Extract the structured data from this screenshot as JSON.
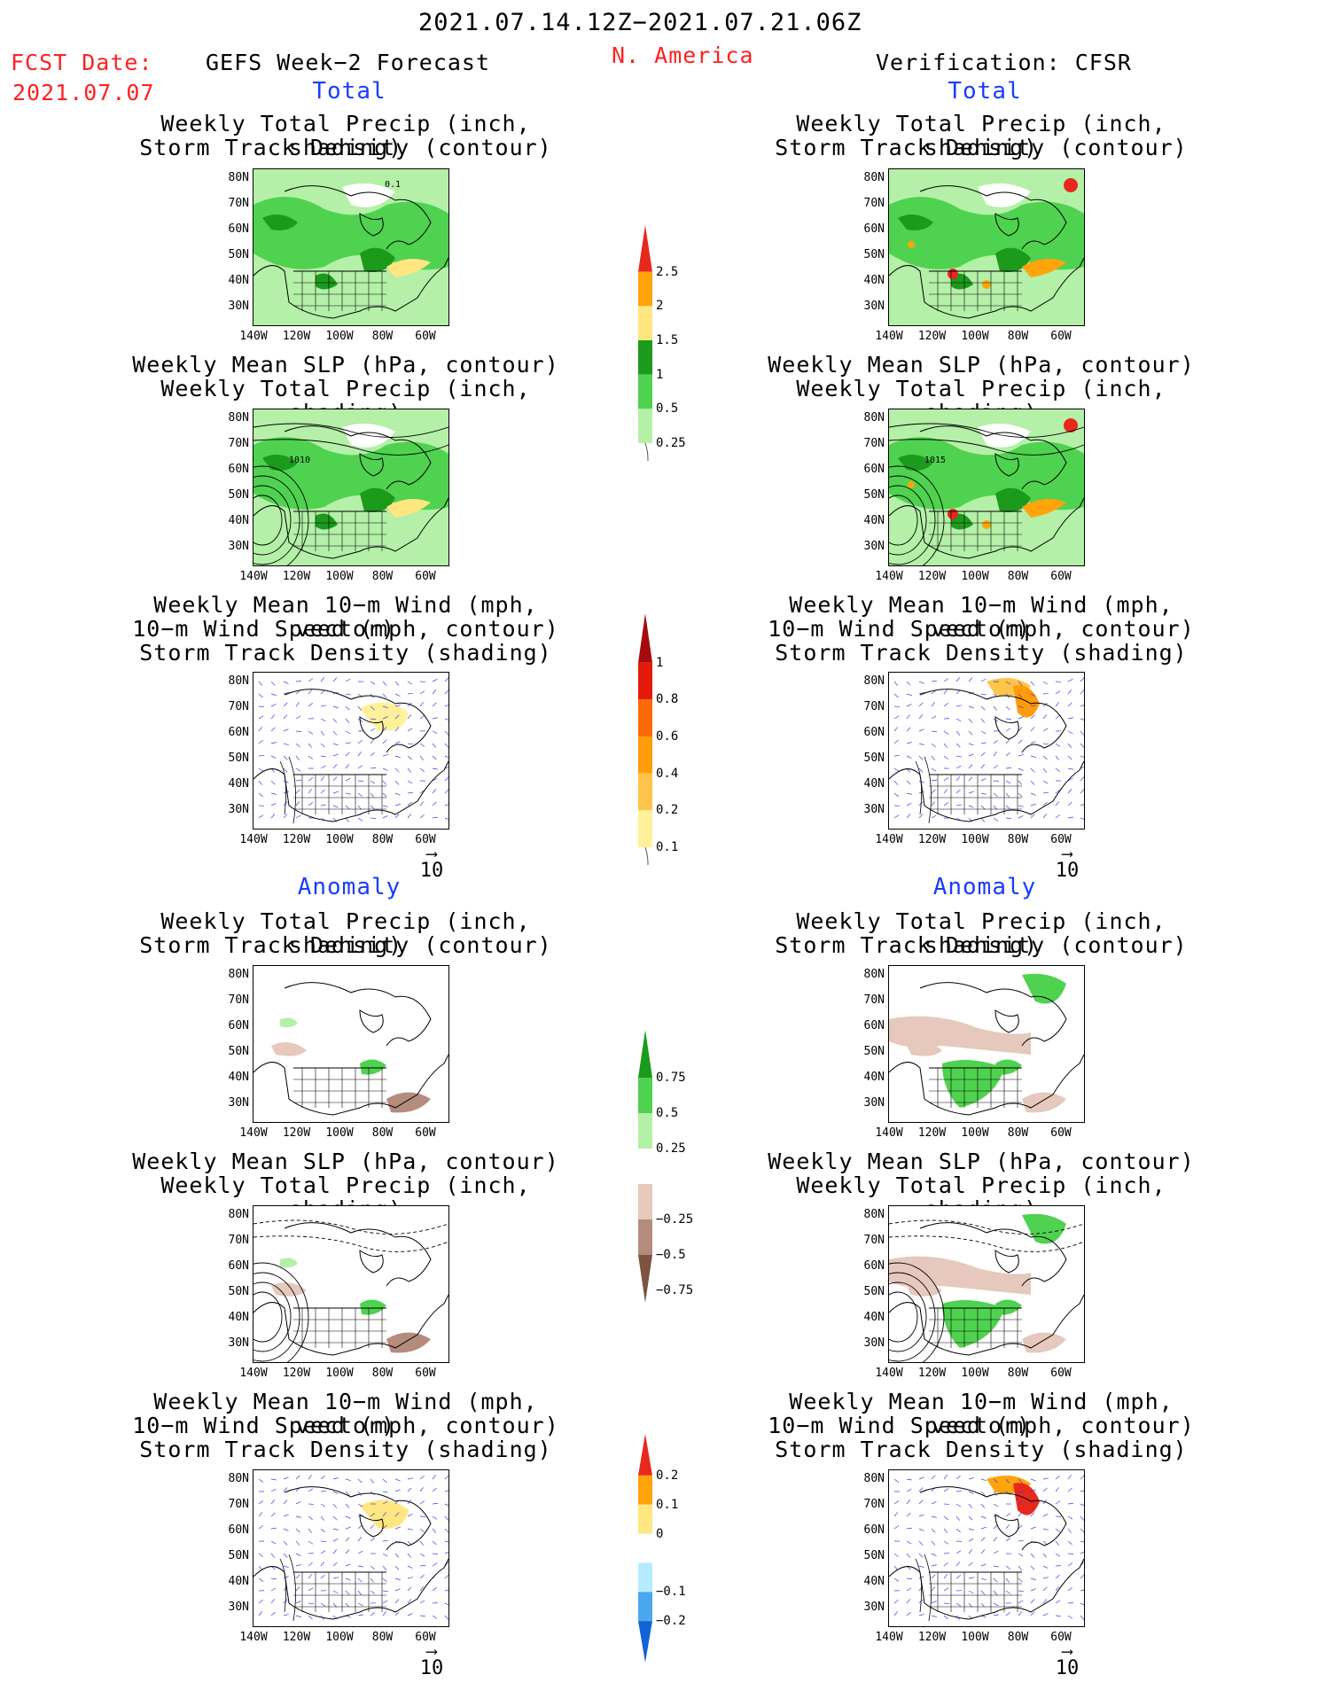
{
  "header": {
    "period": "2021.07.14.12Z−2021.07.21.06Z",
    "fcst_label": "FCST Date:",
    "fcst_date": "2021.07.07",
    "model": "GEFS Week−2 Forecast",
    "region": "N. America",
    "verification": "Verification: CFSR"
  },
  "sections": {
    "total": "Total",
    "anomaly": "Anomaly"
  },
  "panel_titles": {
    "precip_track": [
      "Weekly Total Precip (inch, shading)",
      "Storm Track Density (contour)"
    ],
    "slp_precip": [
      "Weekly Mean SLP (hPa, contour)",
      "Weekly Total Precip (inch, shading)"
    ],
    "wind_track": [
      "Weekly Mean 10−m Wind (mph, vector)",
      "10−m Wind Speed (mph, contour)",
      "Storm Track Density (shading)"
    ]
  },
  "axes": {
    "lat_labels": [
      "80N",
      "70N",
      "60N",
      "50N",
      "40N",
      "30N"
    ],
    "lon_labels": [
      "140W",
      "120W",
      "100W",
      "80W",
      "60W"
    ]
  },
  "vector_reference": "10",
  "contour_labels": {
    "fcst_slp_total": "1010",
    "cfsr_slp_total": "1015",
    "fcst_track_total": "0.1"
  },
  "colorbars": {
    "precip_total": {
      "labels": [
        "2.5",
        "2",
        "1.5",
        "1",
        "0.5",
        "0.25"
      ],
      "colors": [
        "#e8281c",
        "#ffa40a",
        "#ffe680",
        "#1c9a1c",
        "#4fd24f",
        "#b4f0a8"
      ]
    },
    "track_total": {
      "labels": [
        "1",
        "0.8",
        "0.6",
        "0.4",
        "0.2",
        "0.1"
      ],
      "colors": [
        "#a40c0c",
        "#e41a0a",
        "#ff6a08",
        "#ff9c0a",
        "#ffc44a",
        "#fff09a"
      ]
    },
    "precip_anom": {
      "labels": [
        "0.75",
        "0.5",
        "0.25",
        "−0.25",
        "−0.5",
        "−0.75"
      ],
      "colors": [
        "#1c9a1c",
        "#4fd24f",
        "#b4f0a8",
        "#ffffff",
        "#e6c8bc",
        "#b48c7c",
        "#7c5440"
      ]
    },
    "track_anom": {
      "labels": [
        "0.2",
        "0.1",
        "0",
        "−0.1",
        "−0.2"
      ],
      "colors": [
        "#e8281c",
        "#ffa40a",
        "#ffe680",
        "#ffffff",
        "#b4ecff",
        "#4aa8f0",
        "#1462d8"
      ]
    }
  },
  "colors": {
    "title_red": "#ff2020",
    "section_blue": "#1a3cff",
    "wind_vectors": "#3c3ce6"
  }
}
